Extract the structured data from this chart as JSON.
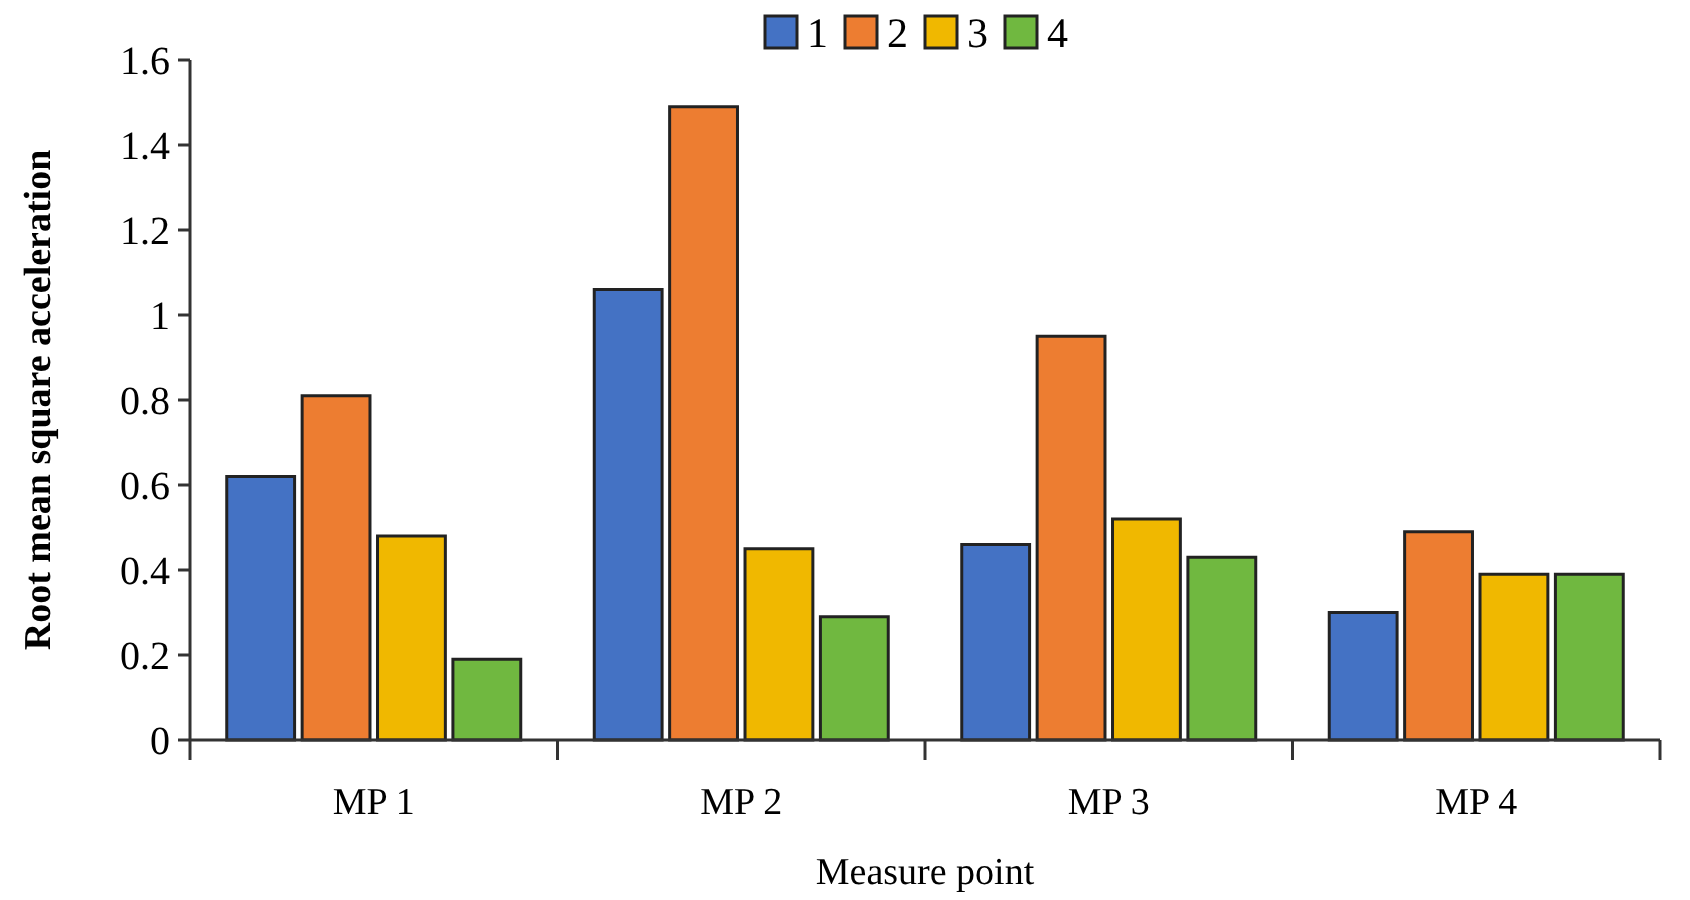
{
  "chart_data": {
    "type": "bar",
    "xlabel": "Measure point",
    "ylabel": "Root mean square acceleration",
    "categories": [
      "MP 1",
      "MP 2",
      "MP 3",
      "MP 4"
    ],
    "series": [
      {
        "name": "1",
        "color": "#4472c4",
        "values": [
          0.62,
          1.06,
          0.46,
          0.3
        ]
      },
      {
        "name": "2",
        "color": "#ed7d31",
        "values": [
          0.81,
          1.49,
          0.95,
          0.49
        ]
      },
      {
        "name": "3",
        "color": "#f0b800",
        "values": [
          0.48,
          0.45,
          0.52,
          0.39
        ]
      },
      {
        "name": "4",
        "color": "#70b840",
        "values": [
          0.19,
          0.29,
          0.43,
          0.39
        ]
      }
    ],
    "ylim": [
      0,
      1.6
    ],
    "yticks": [
      0,
      0.2,
      0.4,
      0.6,
      0.8,
      1,
      1.2,
      1.4,
      1.6
    ],
    "grid": false,
    "legend": "top"
  }
}
